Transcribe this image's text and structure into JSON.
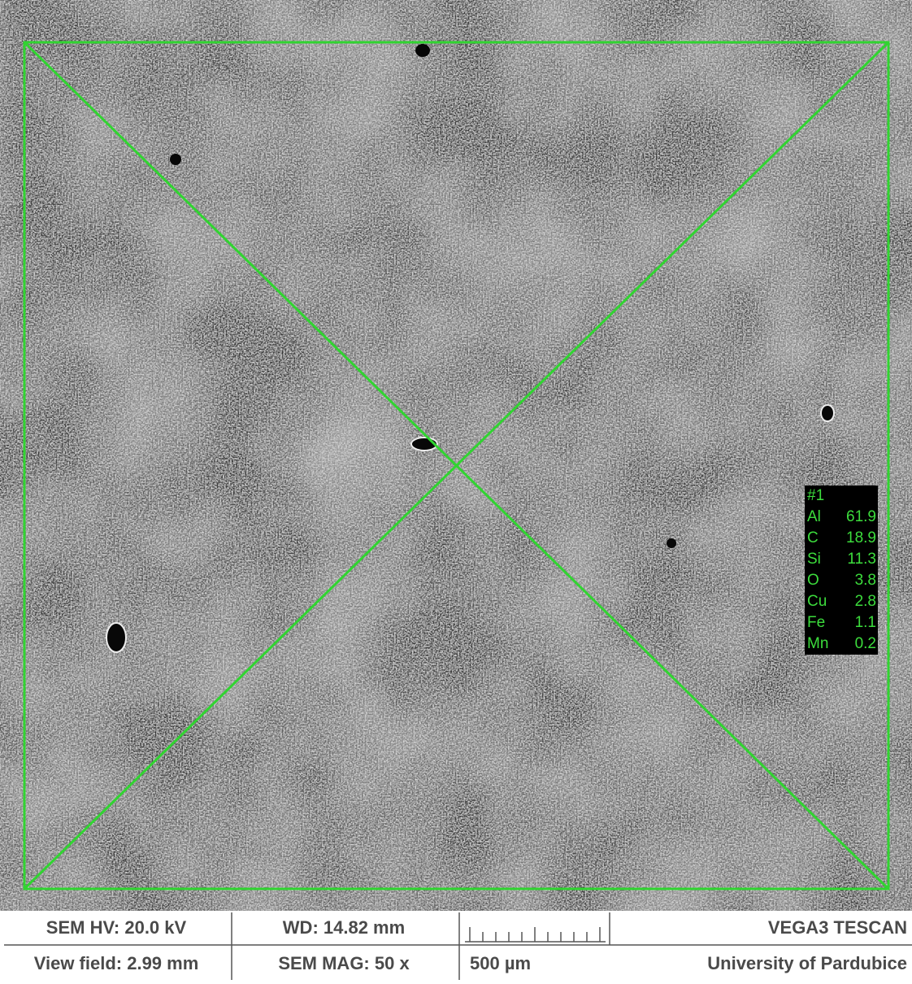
{
  "measurement": {
    "label": "#1",
    "elements": [
      {
        "symbol": "Al",
        "value": 61.9
      },
      {
        "symbol": "C",
        "value": 18.9
      },
      {
        "symbol": "Si",
        "value": 11.3
      },
      {
        "symbol": "O",
        "value": 3.8
      },
      {
        "symbol": "Cu",
        "value": 2.8
      },
      {
        "symbol": "Fe",
        "value": 1.1
      },
      {
        "symbol": "Mn",
        "value": 0.2
      }
    ]
  },
  "info_bar": {
    "hv": "SEM HV: 20.0 kV",
    "wd": "WD: 14.82 mm",
    "instrument": "VEGA3 TESCAN",
    "view_field": "View field: 2.99 mm",
    "mag": "SEM MAG: 50 x",
    "scale": "500 µm",
    "institution": "University of Pardubice"
  }
}
